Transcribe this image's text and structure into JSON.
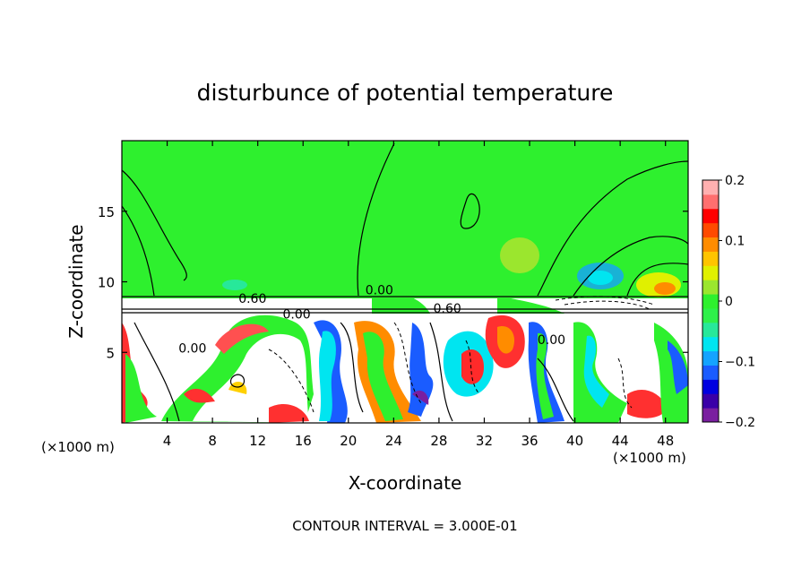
{
  "chart_data": {
    "type": "heatmap",
    "title": "disturbunce of potential temperature",
    "xlabel": "X-coordinate",
    "ylabel": "Z-coordinate",
    "x_unit": "(×1000 m)",
    "x_unit_right": "(×1000 m)",
    "xlim": [
      0,
      50
    ],
    "ylim": [
      0,
      20
    ],
    "x_ticks": [
      4,
      8,
      12,
      16,
      20,
      24,
      28,
      32,
      36,
      40,
      44,
      48
    ],
    "y_ticks": [
      5,
      10,
      15
    ],
    "footer": "CONTOUR INTERVAL = 3.000E-01",
    "colorbar": {
      "range": [
        -0.2,
        0.2
      ],
      "ticks": [
        {
          "value": 0.2,
          "label": "0.2"
        },
        {
          "value": 0.1,
          "label": "0.1"
        },
        {
          "value": 0,
          "label": "0"
        },
        {
          "value": -0.1,
          "label": "−0.1"
        },
        {
          "value": -0.2,
          "label": "−0.2"
        }
      ],
      "colors": [
        "#7a1fa0",
        "#3a00a8",
        "#0000e0",
        "#1a5cff",
        "#14a3ff",
        "#00e5f0",
        "#27e89a",
        "#2ef04a",
        "#2ef02e",
        "#9be62e",
        "#e0f000",
        "#ffc400",
        "#ff8c00",
        "#ff4a00",
        "#ff0000",
        "#ff6f6f",
        "#ffb0b0"
      ]
    },
    "contour_labels": [
      {
        "x": 10.3,
        "y": 8.5,
        "text": "0.60"
      },
      {
        "x": 21.5,
        "y": 9.1,
        "text": "0.00"
      },
      {
        "x": 14.2,
        "y": 7.4,
        "text": "0.00"
      },
      {
        "x": 27.5,
        "y": 7.8,
        "text": "0.60"
      },
      {
        "x": 5.0,
        "y": 5.0,
        "text": "0.00"
      },
      {
        "x": 36.7,
        "y": 5.6,
        "text": "0.00"
      }
    ],
    "field_description": {
      "stratosphere_above_z": 9.0,
      "upper_region_value": 0.0
    }
  }
}
